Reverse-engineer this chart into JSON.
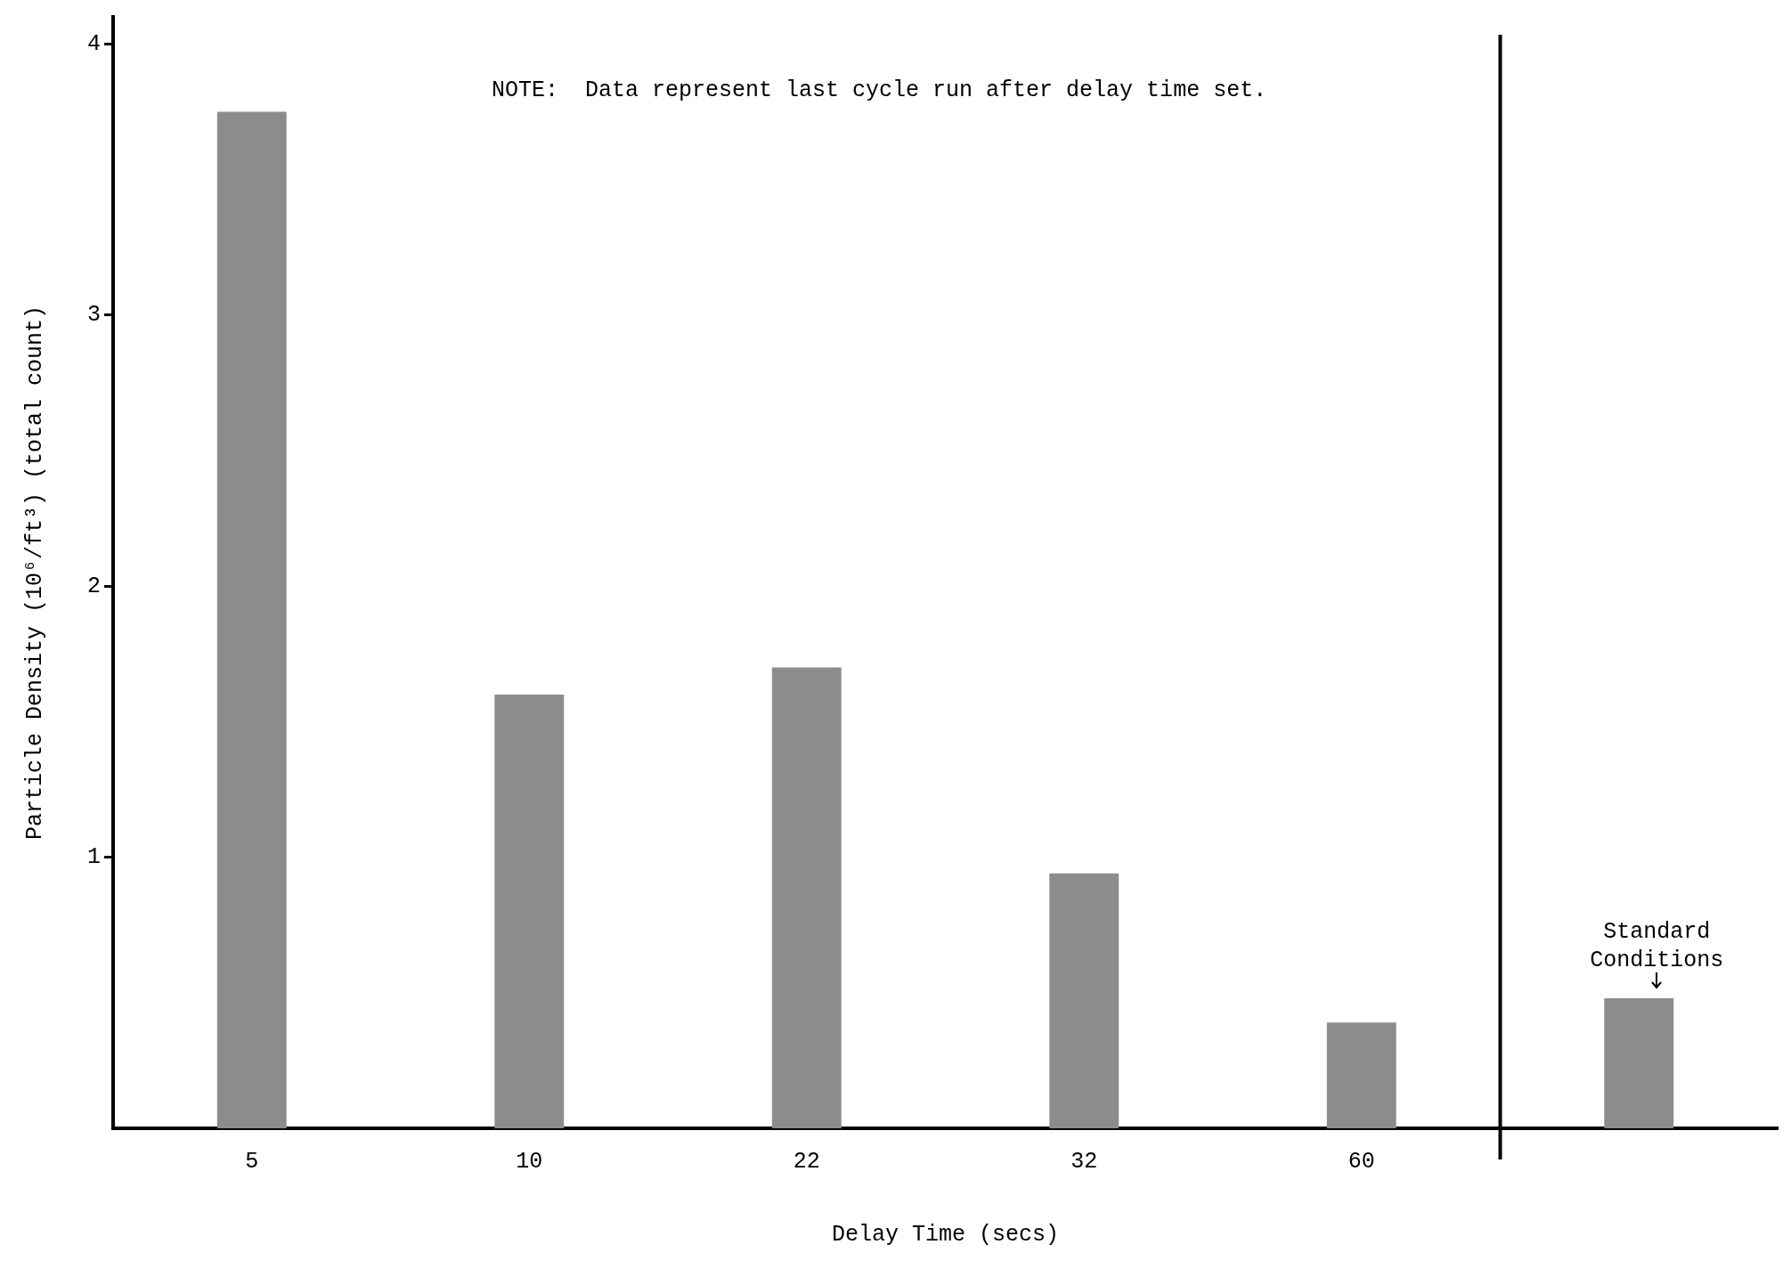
{
  "chart_data": {
    "type": "bar",
    "xlabel": "Delay Time (secs)",
    "ylabel": "Particle Density (10⁶/ft³) (total count)",
    "categories": [
      "5",
      "10",
      "22",
      "32",
      "60",
      null
    ],
    "values": [
      3.75,
      1.6,
      1.7,
      0.94,
      0.39,
      0.48
    ],
    "color": "#8c8c8c",
    "ylim": [
      0,
      4.1
    ],
    "yticks": [
      1,
      2,
      3,
      4
    ],
    "grid": false,
    "legend": false,
    "annotations": [
      "NOTE:  Data represent last cycle run after delay time set.",
      {
        "text": "Standard Conditions",
        "y": 0.48
      }
    ]
  }
}
